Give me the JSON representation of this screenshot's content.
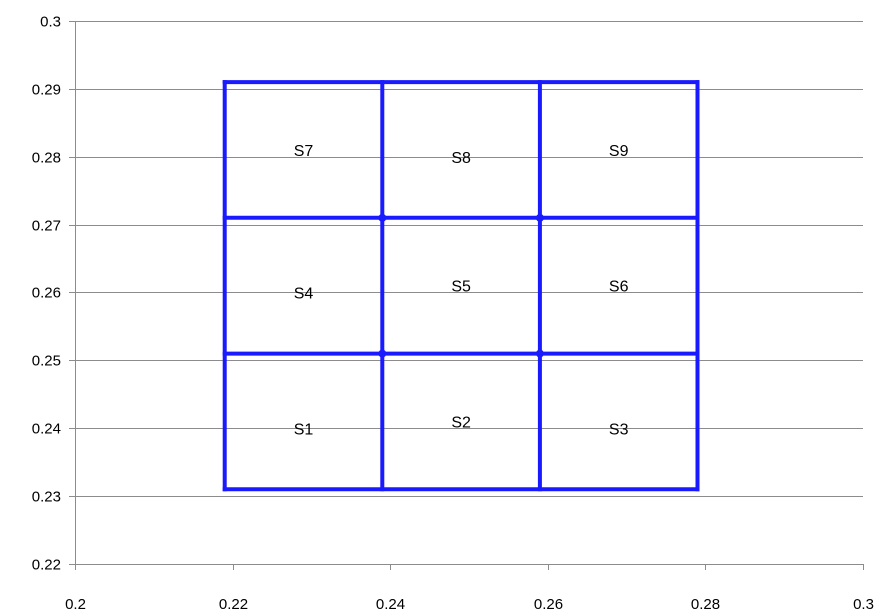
{
  "chart_data": {
    "type": "scatter",
    "title": "",
    "xlabel": "",
    "ylabel": "",
    "xlim": [
      0.2,
      0.3
    ],
    "ylim": [
      0.22,
      0.3
    ],
    "grid": "horizontal",
    "legend": "none",
    "x_ticks": [
      "0.2",
      "0.22",
      "0.24",
      "0.26",
      "0.28",
      "0.3"
    ],
    "y_ticks": [
      "0.22",
      "0.23",
      "0.24",
      "0.25",
      "0.26",
      "0.27",
      "0.28",
      "0.29",
      "0.3"
    ],
    "line_color": "#1a1aff",
    "grid_color": "#8c8c8c",
    "series": [
      {
        "x": [
          0.219,
          0.279
        ],
        "y": [
          0.231,
          0.231
        ]
      },
      {
        "x": [
          0.219,
          0.279
        ],
        "y": [
          0.251,
          0.251
        ]
      },
      {
        "x": [
          0.219,
          0.279
        ],
        "y": [
          0.271,
          0.271
        ]
      },
      {
        "x": [
          0.219,
          0.279
        ],
        "y": [
          0.291,
          0.291
        ]
      },
      {
        "x": [
          0.219,
          0.219
        ],
        "y": [
          0.231,
          0.291
        ]
      },
      {
        "x": [
          0.239,
          0.239
        ],
        "y": [
          0.231,
          0.291
        ]
      },
      {
        "x": [
          0.259,
          0.259
        ],
        "y": [
          0.231,
          0.291
        ]
      },
      {
        "x": [
          0.279,
          0.279
        ],
        "y": [
          0.231,
          0.291
        ]
      }
    ],
    "annotations": [
      {
        "text": "S1",
        "x": 0.229,
        "y": 0.24
      },
      {
        "text": "S2",
        "x": 0.249,
        "y": 0.241
      },
      {
        "text": "S3",
        "x": 0.269,
        "y": 0.24
      },
      {
        "text": "S4",
        "x": 0.229,
        "y": 0.26
      },
      {
        "text": "S5",
        "x": 0.249,
        "y": 0.261
      },
      {
        "text": "S6",
        "x": 0.269,
        "y": 0.261
      },
      {
        "text": "S7",
        "x": 0.229,
        "y": 0.281
      },
      {
        "text": "S8",
        "x": 0.249,
        "y": 0.28
      },
      {
        "text": "S9",
        "x": 0.269,
        "y": 0.281
      }
    ]
  }
}
